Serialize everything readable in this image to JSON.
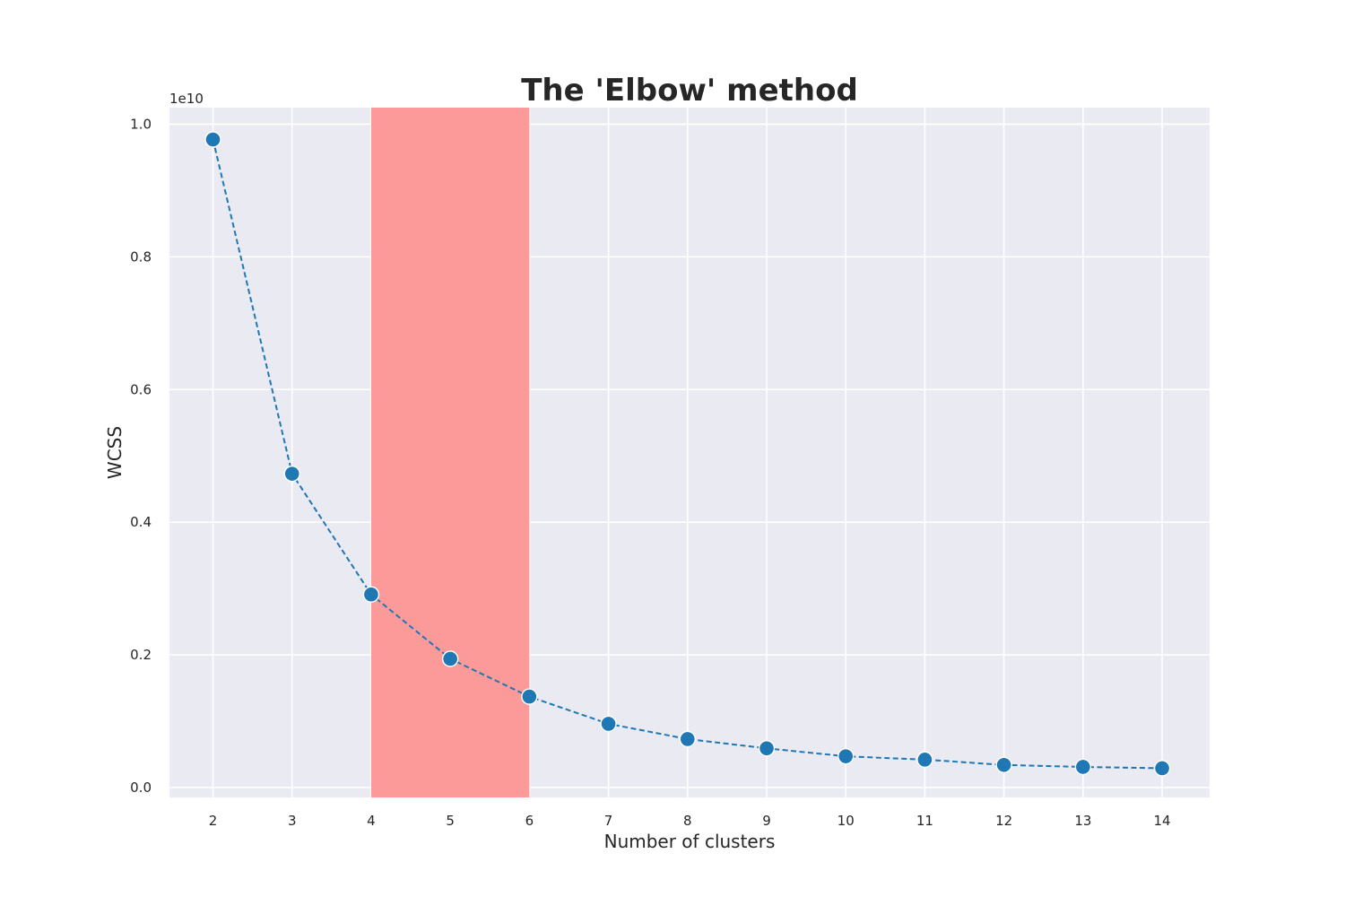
{
  "chart_data": {
    "type": "line",
    "title": "The 'Elbow' method",
    "xlabel": "Number of clusters",
    "ylabel": "WCSS",
    "y_offset_label": "1e10",
    "x": [
      2,
      3,
      4,
      5,
      6,
      7,
      8,
      9,
      10,
      11,
      12,
      13,
      14
    ],
    "y": [
      9770000000.0,
      4730000000.0,
      2910000000.0,
      1940000000.0,
      1370000000.0,
      960000000.0,
      730000000.0,
      590000000.0,
      470000000.0,
      420000000.0,
      340000000.0,
      310000000.0,
      290000000.0
    ],
    "x_ticks": [
      "2",
      "3",
      "4",
      "5",
      "6",
      "7",
      "8",
      "9",
      "10",
      "11",
      "12",
      "13",
      "14"
    ],
    "y_ticks": [
      "0.0",
      "0.2",
      "0.4",
      "0.6",
      "0.8",
      "1.0"
    ],
    "y_tick_values": [
      0,
      2000000000.0,
      4000000000.0,
      6000000000.0,
      8000000000.0,
      10000000000.0
    ],
    "xlim": [
      1.45,
      14.6
    ],
    "ylim": [
      -150000000.0,
      10250000000.0
    ],
    "highlight_span": [
      4,
      6
    ],
    "grid": true,
    "legend": "none",
    "line_style": "dashed",
    "colors": {
      "background": "#eaeaf2",
      "grid": "#ffffff",
      "line": "#1f77b4",
      "marker": "#1f77b4",
      "marker_edge": "#ffffff",
      "highlight": "#fc9a9a"
    }
  }
}
